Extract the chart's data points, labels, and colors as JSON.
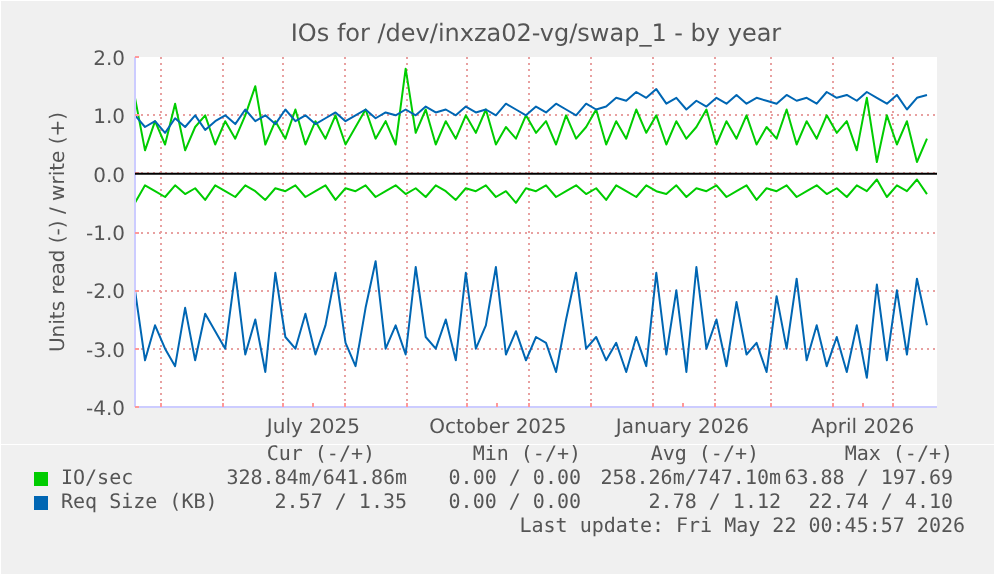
{
  "chart_data": {
    "type": "line",
    "title": "IOs for /dev/inxza02-vg/swap_1 - by year",
    "ylabel": "Units read (-) / write (+)",
    "x": [
      "2025-04-18",
      "2025-04-23",
      "2025-04-28",
      "2025-05-03",
      "2025-05-08",
      "2025-05-13",
      "2025-05-18",
      "2025-05-23",
      "2025-05-28",
      "2025-06-02",
      "2025-06-07",
      "2025-06-12",
      "2025-06-17",
      "2025-06-22",
      "2025-06-27",
      "2025-07-02",
      "2025-07-07",
      "2025-07-12",
      "2025-07-17",
      "2025-07-22",
      "2025-07-27",
      "2025-08-01",
      "2025-08-06",
      "2025-08-11",
      "2025-08-16",
      "2025-08-21",
      "2025-08-26",
      "2025-08-31",
      "2025-09-05",
      "2025-09-10",
      "2025-09-15",
      "2025-09-20",
      "2025-09-25",
      "2025-09-30",
      "2025-10-05",
      "2025-10-10",
      "2025-10-15",
      "2025-10-20",
      "2025-10-25",
      "2025-10-30",
      "2025-11-04",
      "2025-11-09",
      "2025-11-14",
      "2025-11-19",
      "2025-11-24",
      "2025-11-29",
      "2025-12-04",
      "2025-12-09",
      "2025-12-14",
      "2025-12-19",
      "2025-12-24",
      "2025-12-29",
      "2026-01-03",
      "2026-01-08",
      "2026-01-13",
      "2026-01-18",
      "2026-01-23",
      "2026-01-28",
      "2026-02-02",
      "2026-02-07",
      "2026-02-12",
      "2026-02-17",
      "2026-02-22",
      "2026-02-27",
      "2026-03-04",
      "2026-03-09",
      "2026-03-14",
      "2026-03-19",
      "2026-03-24",
      "2026-03-29",
      "2026-04-03",
      "2026-04-08",
      "2026-04-13",
      "2026-04-18",
      "2026-04-23",
      "2026-04-28",
      "2026-05-03",
      "2026-05-08",
      "2026-05-13",
      "2026-05-18"
    ],
    "series": [
      {
        "name": "IO/sec",
        "color": "#00cc00",
        "values": [
          1.3,
          0.4,
          0.9,
          0.5,
          1.2,
          0.4,
          0.8,
          1.0,
          0.5,
          0.9,
          0.6,
          1.0,
          1.5,
          0.5,
          0.9,
          0.6,
          1.1,
          0.5,
          0.9,
          0.6,
          1.0,
          0.5,
          0.8,
          1.1,
          0.6,
          0.9,
          0.5,
          1.8,
          0.7,
          1.1,
          0.5,
          0.9,
          0.6,
          1.0,
          0.7,
          1.1,
          0.5,
          0.8,
          0.6,
          1.0,
          0.7,
          0.9,
          0.5,
          1.0,
          0.6,
          0.8,
          1.1,
          0.5,
          0.9,
          0.6,
          1.1,
          0.7,
          1.0,
          0.5,
          0.9,
          0.6,
          0.8,
          1.1,
          0.5,
          0.9,
          0.6,
          1.0,
          0.5,
          0.8,
          0.6,
          1.1,
          0.5,
          0.9,
          0.6,
          1.0,
          0.7,
          0.9,
          0.4,
          1.3,
          0.2,
          1.0,
          0.5,
          0.9,
          0.2,
          0.6
        ]
      },
      {
        "color": "#00cc00",
        "values": [
          -0.5,
          -0.2,
          -0.3,
          -0.4,
          -0.2,
          -0.35,
          -0.25,
          -0.45,
          -0.2,
          -0.3,
          -0.4,
          -0.2,
          -0.3,
          -0.45,
          -0.25,
          -0.3,
          -0.2,
          -0.4,
          -0.3,
          -0.2,
          -0.45,
          -0.25,
          -0.3,
          -0.2,
          -0.4,
          -0.3,
          -0.2,
          -0.35,
          -0.25,
          -0.4,
          -0.2,
          -0.3,
          -0.45,
          -0.25,
          -0.3,
          -0.2,
          -0.4,
          -0.3,
          -0.5,
          -0.25,
          -0.3,
          -0.2,
          -0.4,
          -0.3,
          -0.2,
          -0.35,
          -0.25,
          -0.45,
          -0.2,
          -0.3,
          -0.4,
          -0.2,
          -0.3,
          -0.35,
          -0.2,
          -0.4,
          -0.25,
          -0.3,
          -0.2,
          -0.4,
          -0.3,
          -0.2,
          -0.45,
          -0.25,
          -0.3,
          -0.2,
          -0.4,
          -0.3,
          -0.2,
          -0.35,
          -0.25,
          -0.4,
          -0.2,
          -0.3,
          -0.1,
          -0.4,
          -0.2,
          -0.3,
          -0.1,
          -0.35
        ]
      },
      {
        "name": "Req Size (KB)",
        "color": "#0066b3",
        "values": [
          1.0,
          0.8,
          0.9,
          0.7,
          0.95,
          0.8,
          1.0,
          0.75,
          0.9,
          1.0,
          0.85,
          1.1,
          0.9,
          1.0,
          0.85,
          1.1,
          0.9,
          1.0,
          0.85,
          0.95,
          1.05,
          0.9,
          1.0,
          1.1,
          0.95,
          1.05,
          1.0,
          1.1,
          1.0,
          1.15,
          1.05,
          1.1,
          1.0,
          1.15,
          1.05,
          1.1,
          1.0,
          1.2,
          1.1,
          1.0,
          1.15,
          1.05,
          1.2,
          1.1,
          1.0,
          1.2,
          1.1,
          1.15,
          1.3,
          1.25,
          1.4,
          1.3,
          1.45,
          1.2,
          1.3,
          1.1,
          1.25,
          1.15,
          1.3,
          1.2,
          1.35,
          1.2,
          1.3,
          1.25,
          1.2,
          1.35,
          1.25,
          1.3,
          1.2,
          1.4,
          1.3,
          1.35,
          1.25,
          1.4,
          1.3,
          1.2,
          1.35,
          1.1,
          1.3,
          1.35
        ]
      },
      {
        "color": "#0066b3",
        "values": [
          -2.0,
          -3.2,
          -2.6,
          -3.0,
          -3.3,
          -2.3,
          -3.2,
          -2.4,
          -2.7,
          -3.0,
          -1.7,
          -3.1,
          -2.5,
          -3.4,
          -1.7,
          -2.8,
          -3.0,
          -2.4,
          -3.1,
          -2.6,
          -1.7,
          -2.9,
          -3.3,
          -2.3,
          -1.5,
          -3.0,
          -2.6,
          -3.1,
          -1.6,
          -2.8,
          -3.0,
          -2.5,
          -3.2,
          -1.7,
          -3.0,
          -2.6,
          -1.6,
          -3.1,
          -2.7,
          -3.2,
          -2.8,
          -2.9,
          -3.4,
          -2.5,
          -1.7,
          -3.0,
          -2.8,
          -3.2,
          -2.9,
          -3.4,
          -2.8,
          -3.3,
          -1.7,
          -3.1,
          -2.0,
          -3.4,
          -1.6,
          -3.0,
          -2.5,
          -3.3,
          -2.2,
          -3.1,
          -2.9,
          -3.4,
          -2.1,
          -3.0,
          -1.8,
          -3.2,
          -2.6,
          -3.3,
          -2.8,
          -3.4,
          -2.6,
          -3.5,
          -1.9,
          -3.2,
          -2.0,
          -3.1,
          -1.8,
          -2.6
        ]
      }
    ],
    "xlim": [
      "2025-04-18",
      "2026-05-23"
    ],
    "xticks": [
      {
        "value": "2025-05-01",
        "label": null
      },
      {
        "value": "2025-06-01",
        "label": null
      },
      {
        "value": "2025-07-01",
        "label": null
      },
      {
        "value": "2025-07-16",
        "label": "July 2025"
      },
      {
        "value": "2025-08-01",
        "label": null
      },
      {
        "value": "2025-09-01",
        "label": null
      },
      {
        "value": "2025-10-01",
        "label": null
      },
      {
        "value": "2025-10-16",
        "label": "October 2025"
      },
      {
        "value": "2025-11-01",
        "label": null
      },
      {
        "value": "2025-12-01",
        "label": null
      },
      {
        "value": "2026-01-01",
        "label": null
      },
      {
        "value": "2026-01-16",
        "label": "January 2026"
      },
      {
        "value": "2026-02-01",
        "label": null
      },
      {
        "value": "2026-03-01",
        "label": null
      },
      {
        "value": "2026-04-01",
        "label": null
      },
      {
        "value": "2026-04-16",
        "label": "April 2026"
      },
      {
        "value": "2026-05-01",
        "label": null
      }
    ],
    "ylim": [
      -4,
      2
    ],
    "yticks": [
      {
        "value": -4,
        "label": "-4.0"
      },
      {
        "value": -3,
        "label": "-3.0"
      },
      {
        "value": -2,
        "label": "-2.0"
      },
      {
        "value": -1,
        "label": "-1.0"
      },
      {
        "value": 0,
        "label": "0.0"
      },
      {
        "value": 1,
        "label": "1.0"
      },
      {
        "value": 2,
        "label": "2.0"
      }
    ],
    "grid": true,
    "legend": "bottom left",
    "ref_lines": [
      {
        "axis": "y",
        "value": 0,
        "color": "#000000"
      }
    ],
    "annotations": [
      "Cur (-/+)",
      "Min (-/+)",
      "Avg (-/+)",
      "Max (-/+)",
      "328.84m/641.86m",
      "0.00 / 0.00",
      "258.26m/747.10m",
      "63.88 / 197.69",
      "2.57 / 1.35",
      "0.00 / 0.00",
      "2.78 / 1.12",
      "22.74 / 4.10",
      "Last update: Fri May 22 00:45:57 2026"
    ]
  }
}
